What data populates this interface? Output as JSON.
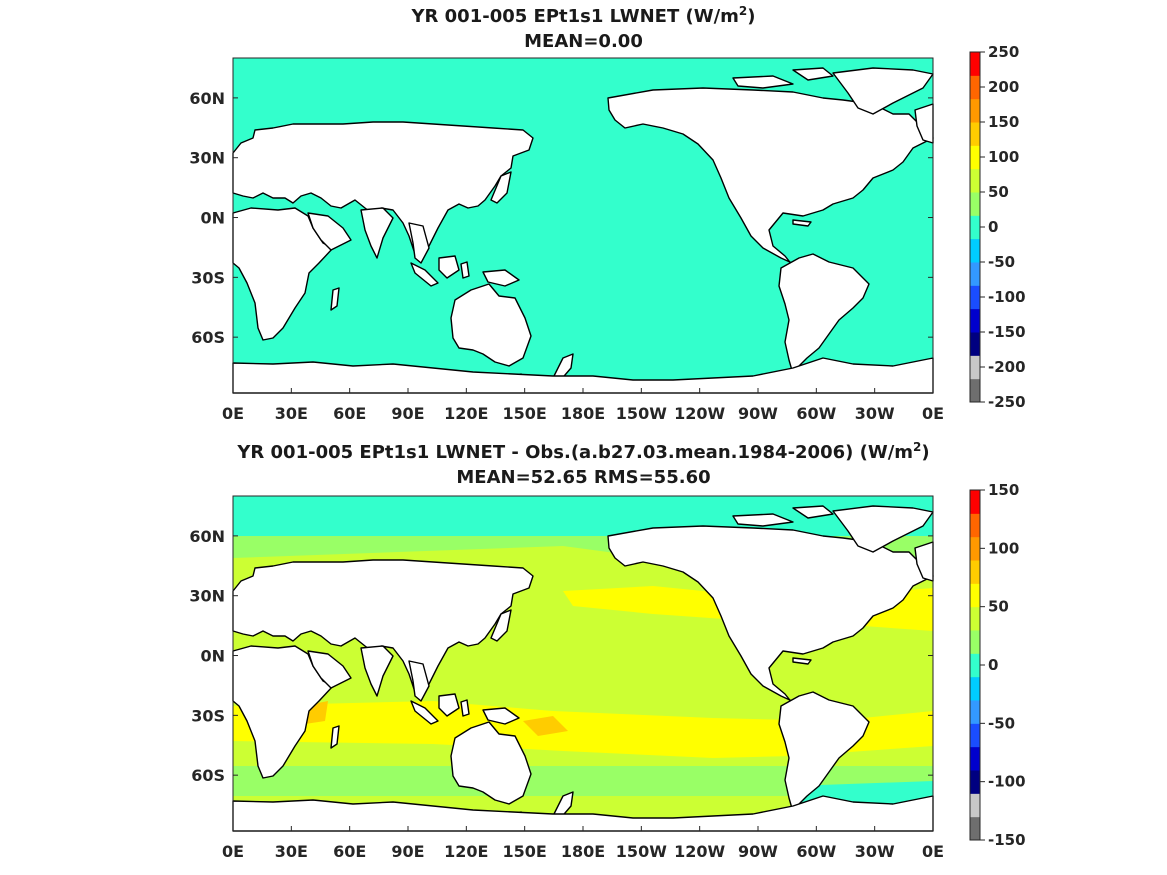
{
  "panels": [
    {
      "title_main": "YR 001-005 EPt1s1  LWNET (W/m",
      "title_sup": "2",
      "title_close": ")",
      "subtitle": "MEAN=0.00",
      "colorbar": [
        "250",
        "200",
        "150",
        "100",
        "50",
        "0",
        "-50",
        "-100",
        "-150",
        "-200",
        "-250"
      ],
      "ocean_color": "#33ffcc"
    },
    {
      "title_main": "YR 001-005 EPt1s1 LWNET - Obs.(a.b27.03.mean.1984-2006) (W/m",
      "title_sup": "2",
      "title_close": ")",
      "subtitle": "MEAN=52.65 RMS=55.60",
      "colorbar": [
        "150",
        "100",
        "50",
        "0",
        "-50",
        "-100",
        "-150"
      ],
      "ocean_color": "#ccff33"
    }
  ],
  "lon_labels": [
    "0E",
    "30E",
    "60E",
    "90E",
    "120E",
    "150E",
    "180E",
    "150W",
    "120W",
    "90W",
    "60W",
    "30W",
    "0E"
  ],
  "lat_labels": [
    "60N",
    "30N",
    "0N",
    "30S",
    "60S"
  ],
  "colormap": [
    "#6e6e6e",
    "#c8c8c8",
    "#000080",
    "#0000cc",
    "#1a4dff",
    "#3399ff",
    "#00ccff",
    "#33ffcc",
    "#99ff66",
    "#ccff33",
    "#ffff00",
    "#ffcc00",
    "#ff9900",
    "#ff6600",
    "#ff0000"
  ],
  "map_data": {
    "projection": "equirectangular",
    "central_longitude": 180,
    "lon_range": [
      0,
      360
    ],
    "lat_range": [
      -90,
      90
    ]
  }
}
